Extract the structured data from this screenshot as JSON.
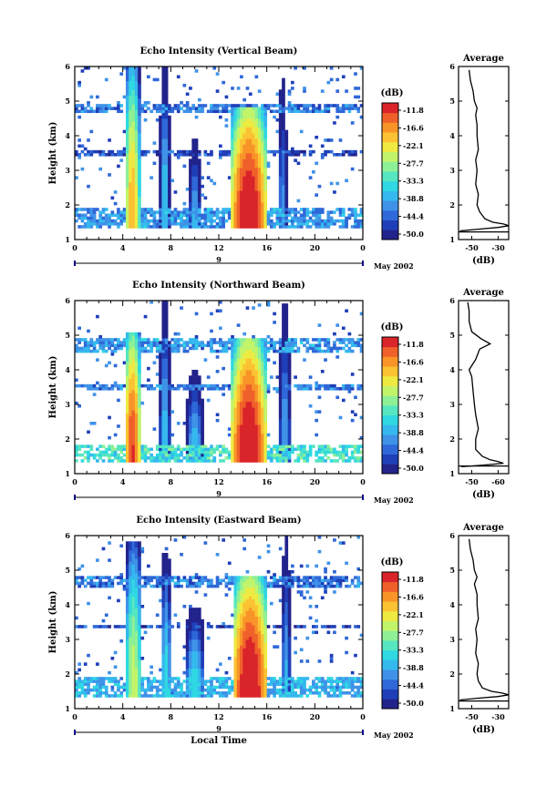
{
  "colors": {
    "scale": [
      "#23238c",
      "#1f3fb8",
      "#2f68d8",
      "#3f92e8",
      "#35b8ee",
      "#2fd8e2",
      "#56e6c0",
      "#8ef096",
      "#c2f46a",
      "#eeea42",
      "#fbc233",
      "#f89428",
      "#f0602a",
      "#d9242a"
    ]
  },
  "colorbar": {
    "title": "(dB)",
    "ticks": [
      "-11.8",
      "-16.6",
      "-22.1",
      "-27.7",
      "-33.3",
      "-38.8",
      "-44.4",
      "-50.0"
    ]
  },
  "date_label": "May 2002",
  "xlabel": "Local Time",
  "day_label": "9",
  "chart_data": [
    {
      "type": "heatmap",
      "title": "Echo Intensity (Vertical Beam)",
      "xlabel": "",
      "ylabel": "Height (km)",
      "x_ticks": [
        "0",
        "4",
        "8",
        "12",
        "16",
        "20",
        "0"
      ],
      "y_ticks": [
        "1",
        "2",
        "3",
        "4",
        "5",
        "6"
      ],
      "xlim": [
        0,
        24
      ],
      "ylim": [
        1,
        6
      ],
      "clim": [
        -50.0,
        -11.8
      ],
      "layers": [
        {
          "name": "boundary",
          "x0": 0,
          "x1": 24,
          "y0": 1.35,
          "y1": 1.9,
          "value": -40
        },
        {
          "name": "cloud_5km",
          "x0": 0,
          "x1": 24,
          "y0": 4.7,
          "y1": 4.9,
          "value": -42
        },
        {
          "name": "thin_3.5km",
          "x0": 0,
          "x1": 24,
          "y0": 3.45,
          "y1": 3.55,
          "value": -45
        }
      ],
      "columns": [
        {
          "x": 4.8,
          "width": 1.2,
          "top": 6.0,
          "peak": -20
        },
        {
          "x": 7.5,
          "width": 0.8,
          "top": 6.0,
          "peak": -35
        },
        {
          "x": 10.0,
          "width": 1.0,
          "top": 4.0,
          "peak": -38
        },
        {
          "x": 14.5,
          "width": 2.8,
          "top": 4.8,
          "peak": -10
        },
        {
          "x": 17.3,
          "width": 0.8,
          "top": 6.0,
          "peak": -40
        }
      ],
      "profile": {
        "title": "Average",
        "xlabel": "(dB)",
        "x_ticks": [
          "-50",
          "-30"
        ],
        "y_ticks": [
          "1",
          "2",
          "3",
          "4",
          "5",
          "6"
        ],
        "xlim": [
          -60,
          -22
        ],
        "height": [
          1.25,
          1.3,
          1.35,
          1.4,
          1.45,
          1.5,
          1.6,
          1.8,
          2.0,
          2.3,
          2.6,
          3.0,
          3.3,
          3.6,
          4.0,
          4.3,
          4.6,
          4.8,
          5.0,
          5.3,
          5.6,
          5.9
        ],
        "db": [
          -59,
          -45,
          -30,
          -22,
          -26,
          -34,
          -40,
          -44,
          -46,
          -45,
          -47,
          -46,
          -47,
          -45,
          -46,
          -46,
          -47,
          -46,
          -48,
          -49,
          -51,
          -52
        ]
      }
    },
    {
      "type": "heatmap",
      "title": "Echo Intensity (Northward Beam)",
      "xlabel": "",
      "ylabel": "Height (km)",
      "x_ticks": [
        "0",
        "4",
        "8",
        "12",
        "16",
        "20",
        "0"
      ],
      "y_ticks": [
        "1",
        "2",
        "3",
        "4",
        "5",
        "6"
      ],
      "xlim": [
        0,
        24
      ],
      "ylim": [
        1,
        6
      ],
      "clim": [
        -50.0,
        -11.8
      ],
      "layers": [
        {
          "name": "boundary",
          "x0": 0,
          "x1": 24,
          "y0": 1.35,
          "y1": 1.85,
          "value": -34
        },
        {
          "name": "cloud_5km",
          "x0": 0,
          "x1": 24,
          "y0": 4.5,
          "y1": 4.9,
          "value": -40
        },
        {
          "name": "thin_3.5km",
          "x0": 0,
          "x1": 24,
          "y0": 3.45,
          "y1": 3.6,
          "value": -42
        }
      ],
      "columns": [
        {
          "x": 4.8,
          "width": 1.3,
          "top": 5.1,
          "peak": -14
        },
        {
          "x": 7.5,
          "width": 0.9,
          "top": 6.0,
          "peak": -36
        },
        {
          "x": 10.0,
          "width": 1.4,
          "top": 4.0,
          "peak": -36
        },
        {
          "x": 14.5,
          "width": 2.8,
          "top": 4.9,
          "peak": -10
        },
        {
          "x": 17.5,
          "width": 1.0,
          "top": 6.0,
          "peak": -38
        }
      ],
      "profile": {
        "title": "Average",
        "xlabel": "(dB)",
        "x_ticks": [
          "-50",
          "-60"
        ],
        "y_ticks": [
          "1",
          "2",
          "3",
          "4",
          "5",
          "6"
        ],
        "xlim": [
          -60,
          -22
        ],
        "height": [
          1.2,
          1.25,
          1.3,
          1.35,
          1.4,
          1.5,
          1.7,
          2.0,
          2.3,
          2.7,
          3.0,
          3.4,
          3.8,
          4.0,
          4.3,
          4.6,
          4.75,
          4.9,
          5.1,
          5.4,
          5.7,
          5.95
        ],
        "db": [
          -58,
          -40,
          -26,
          -30,
          -36,
          -42,
          -47,
          -47,
          -45,
          -47,
          -48,
          -49,
          -50,
          -52,
          -47,
          -44,
          -36,
          -43,
          -50,
          -52,
          -52,
          -53
        ]
      }
    },
    {
      "type": "heatmap",
      "title": "Echo Intensity (Eastward Beam)",
      "xlabel": "Local Time",
      "ylabel": "Height (km)",
      "x_ticks": [
        "0",
        "4",
        "8",
        "12",
        "16",
        "20",
        "0"
      ],
      "y_ticks": [
        "1",
        "2",
        "3",
        "4",
        "5",
        "6"
      ],
      "xlim": [
        0,
        24
      ],
      "ylim": [
        1,
        6
      ],
      "clim": [
        -50.0,
        -11.8
      ],
      "layers": [
        {
          "name": "boundary",
          "x0": 0,
          "x1": 24,
          "y0": 1.35,
          "y1": 1.9,
          "value": -38
        },
        {
          "name": "cloud_5km",
          "x0": 0,
          "x1": 24,
          "y0": 4.5,
          "y1": 4.8,
          "value": -42
        },
        {
          "name": "thin_3.5km",
          "x0": 0,
          "x1": 24,
          "y0": 3.3,
          "y1": 3.45,
          "value": -45
        }
      ],
      "columns": [
        {
          "x": 4.9,
          "width": 1.4,
          "top": 5.8,
          "peak": -26
        },
        {
          "x": 7.6,
          "width": 0.9,
          "top": 5.5,
          "peak": -34
        },
        {
          "x": 10.0,
          "width": 1.6,
          "top": 3.9,
          "peak": -34
        },
        {
          "x": 14.6,
          "width": 2.8,
          "top": 4.8,
          "peak": -10
        },
        {
          "x": 17.6,
          "width": 0.8,
          "top": 6.0,
          "peak": -38
        }
      ],
      "profile": {
        "title": "Average",
        "xlabel": "(dB)",
        "x_ticks": [
          "-50",
          "-30"
        ],
        "y_ticks": [
          "1",
          "2",
          "3",
          "4",
          "5",
          "6"
        ],
        "xlim": [
          -60,
          -22
        ],
        "height": [
          1.25,
          1.3,
          1.35,
          1.4,
          1.45,
          1.5,
          1.6,
          1.8,
          2.0,
          2.3,
          2.6,
          3.0,
          3.3,
          3.6,
          4.0,
          4.3,
          4.6,
          4.8,
          5.0,
          5.3,
          5.6,
          5.9
        ],
        "db": [
          -59,
          -46,
          -30,
          -22,
          -27,
          -35,
          -42,
          -45,
          -46,
          -45,
          -47,
          -46,
          -47,
          -45,
          -46,
          -46,
          -48,
          -46,
          -48,
          -49,
          -51,
          -52
        ]
      }
    }
  ]
}
